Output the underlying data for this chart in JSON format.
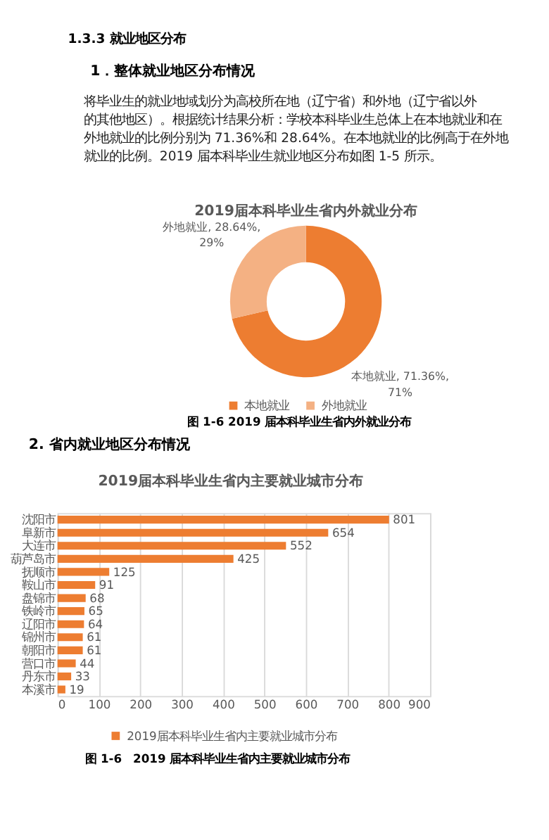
{
  "chart_data": [
    {
      "type": "donut",
      "title": "2019届本科毕业生省内外就业分布",
      "categories": [
        "本地就业",
        "外地就业"
      ],
      "values": [
        71.36,
        28.64
      ],
      "colors": [
        "#ed7d31",
        "#f4b183"
      ],
      "value_labels": [
        "本地就业, 71.36%, 71%",
        "外地就业, 28.64%, 29%"
      ],
      "legend": "bottom",
      "annotations": [
        "1.3.3 就业地区分布",
        "1．整体就业地区分布情况",
        "将毕业生的就业地域划分为高校所在地（辽宁省）和外地（辽宁省以外的其他地区）。根据统计结果分析：学校本科毕业生总体上在本地就业和在外地就业的比例分别为 71.36%和 28.64%。在本地就业的比例高于在外地就业的比例。2019 届本科毕业生就业地区分布如图 1-5 所示。",
        "图 1-6 2019 届本科毕业生省内外就业分布"
      ]
    },
    {
      "type": "bar",
      "orientation": "horizontal",
      "title": "2019届本科毕业生省内主要就业城市分布",
      "categories": [
        "沈阳市",
        "阜新市",
        "大连市",
        "葫芦岛市",
        "抚顺市",
        "鞍山市",
        "盘锦市",
        "铁岭市",
        "辽阳市",
        "锦州市",
        "朝阳市",
        "营口市",
        "丹东市",
        "本溪市"
      ],
      "series": [
        {
          "name": "2019届本科毕业生省内主要就业城市分布",
          "color": "#ed7d31",
          "values": [
            801,
            654,
            552,
            425,
            125,
            91,
            68,
            65,
            64,
            61,
            61,
            44,
            33,
            19
          ]
        }
      ],
      "xlim": [
        0,
        900
      ],
      "xticks": [
        0,
        100,
        200,
        300,
        400,
        500,
        600,
        700,
        800,
        900
      ],
      "grid": "x",
      "data_labels": true,
      "legend": "bottom",
      "annotations": [
        "2. 省内就业地区分布情况",
        "图 1-6　2019 届本科毕业生省内主要就业城市分布"
      ]
    }
  ]
}
